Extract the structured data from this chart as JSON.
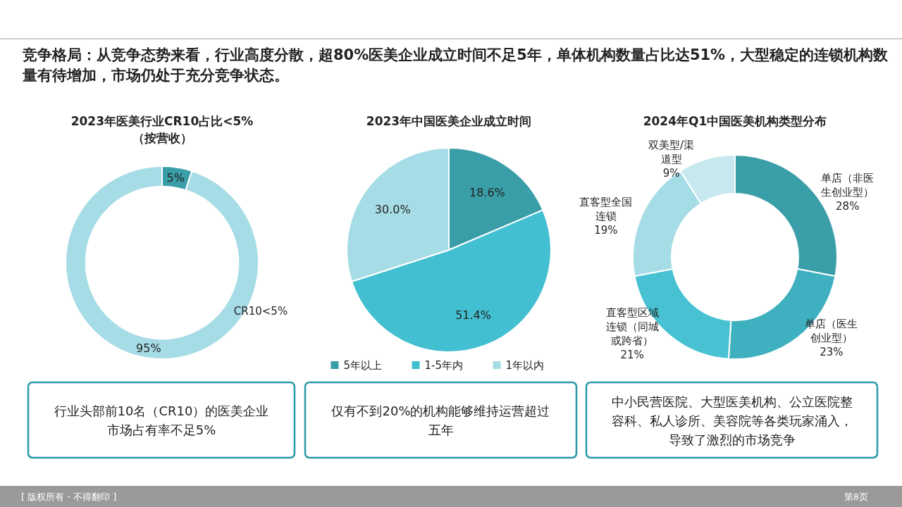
{
  "chart_data": [
    {
      "type": "donut",
      "title": "2023年医美行业CR10占比<5%\n（按营收）",
      "categories": [
        null,
        null
      ],
      "values": [
        5,
        95
      ],
      "colors": [
        "#3a9ea8",
        "#a6dce5"
      ],
      "value_labels": [
        "5%",
        "95%"
      ],
      "annotations": [
        "竞争格局：从竞争态势来看，行业高度分散，超80%医美企业成立时间不足5年，单体机构数量占比达51%，大型稳定的连锁机构数量有待增加，市场仍处于充分竞争状态。",
        "CR10<5%",
        "行业头部前10名（CR10）的医美企业市场占有率不足5%"
      ]
    },
    {
      "type": "pie",
      "title": "2023年中国医美企业成立时间",
      "categories": [
        "5年以上",
        "1-5年内",
        "1年以内"
      ],
      "values": [
        18.6,
        51.4,
        30.0
      ],
      "colors": [
        "#3a9ea8",
        "#42bfd0",
        "#a6dce5"
      ],
      "value_labels": [
        "18.6%",
        "51.4%",
        "30.0%"
      ],
      "legend": "bottom",
      "annotations": [
        "仅有不到20%的机构能够维持运营超过五年"
      ]
    },
    {
      "type": "donut",
      "title": "2024年Q1中国医美机构类型分布",
      "categories": [
        "单店（非医生创业型）",
        "单店（医生创业型）",
        "直客型区域连锁（同城或跨省）",
        "直客型全国连锁",
        "双美型/渠道型"
      ],
      "values": [
        28,
        23,
        21,
        19,
        9
      ],
      "colors": [
        "#3a9ea8",
        "#3fb0c0",
        "#48c2d3",
        "#a6dce5",
        "#c6e8ee"
      ],
      "value_labels": [
        "28%",
        "23%",
        "21%",
        "19%",
        "9%"
      ],
      "annotations": [
        "中小民营医院、大型医美机构、公立医院整容科、私人诊所、美容院等各类玩家涌入，导致了激烈的市场竞争",
        "[ 版权所有・不得翻印 ]",
        "第8页"
      ]
    }
  ]
}
